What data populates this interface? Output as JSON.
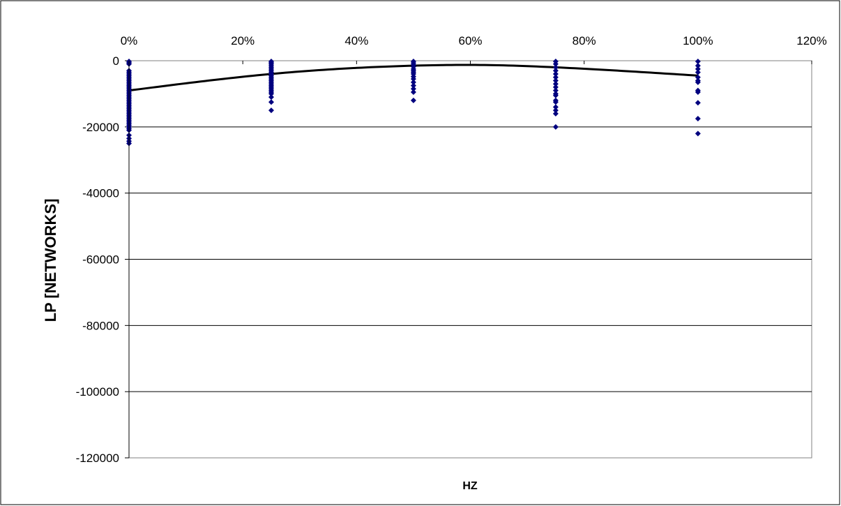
{
  "chart_data": {
    "type": "scatter",
    "title": "",
    "xlabel": "HZ",
    "ylabel": "LP [NETWORKS]",
    "xlim": [
      0,
      1.2
    ],
    "ylim": [
      -120000,
      0
    ],
    "x_ticks": [
      0,
      0.2,
      0.4,
      0.6,
      0.8,
      1.0,
      1.2
    ],
    "x_tick_labels": [
      "0%",
      "20%",
      "40%",
      "60%",
      "80%",
      "100%",
      "120%"
    ],
    "y_ticks": [
      0,
      -20000,
      -40000,
      -60000,
      -80000,
      -100000,
      -120000
    ],
    "y_tick_labels": [
      "0",
      "-20000",
      "-40000",
      "-60000",
      "-80000",
      "-100000",
      "-120000"
    ],
    "x_axis_position": "top",
    "grid": "horizontal",
    "legend": "none",
    "marker_color": "#00007f",
    "trend_color": "#000000",
    "series": [
      {
        "marker": "diamond",
        "points": [
          [
            0,
            -200
          ],
          [
            0,
            -600
          ],
          [
            0,
            -1000
          ],
          [
            0,
            -3000
          ],
          [
            0,
            -3500
          ],
          [
            0,
            -4000
          ],
          [
            0,
            -4500
          ],
          [
            0,
            -5000
          ],
          [
            0,
            -5500
          ],
          [
            0,
            -6000
          ],
          [
            0,
            -6500
          ],
          [
            0,
            -7000
          ],
          [
            0,
            -7500
          ],
          [
            0,
            -8000
          ],
          [
            0,
            -8500
          ],
          [
            0,
            -9000
          ],
          [
            0,
            -9500
          ],
          [
            0,
            -10000
          ],
          [
            0,
            -10500
          ],
          [
            0,
            -11000
          ],
          [
            0,
            -11500
          ],
          [
            0,
            -12000
          ],
          [
            0,
            -12500
          ],
          [
            0,
            -13000
          ],
          [
            0,
            -13500
          ],
          [
            0,
            -14000
          ],
          [
            0,
            -14500
          ],
          [
            0,
            -15000
          ],
          [
            0,
            -15500
          ],
          [
            0,
            -16000
          ],
          [
            0,
            -16500
          ],
          [
            0,
            -17000
          ],
          [
            0,
            -17500
          ],
          [
            0,
            -18000
          ],
          [
            0,
            -18500
          ],
          [
            0,
            -19000
          ],
          [
            0,
            -19500
          ],
          [
            0,
            -20000
          ],
          [
            0,
            -20500
          ],
          [
            0,
            -21000
          ],
          [
            0,
            -22500
          ],
          [
            0,
            -23500
          ],
          [
            0,
            -24300
          ],
          [
            0,
            -25000
          ],
          [
            0.25,
            -200
          ],
          [
            0.25,
            -600
          ],
          [
            0.25,
            -1000
          ],
          [
            0.25,
            -1500
          ],
          [
            0.25,
            -2000
          ],
          [
            0.25,
            -2500
          ],
          [
            0.25,
            -3000
          ],
          [
            0.25,
            -3500
          ],
          [
            0.25,
            -4000
          ],
          [
            0.25,
            -4500
          ],
          [
            0.25,
            -5000
          ],
          [
            0.25,
            -5500
          ],
          [
            0.25,
            -6000
          ],
          [
            0.25,
            -6500
          ],
          [
            0.25,
            -7000
          ],
          [
            0.25,
            -7500
          ],
          [
            0.25,
            -8000
          ],
          [
            0.25,
            -8500
          ],
          [
            0.25,
            -9000
          ],
          [
            0.25,
            -9500
          ],
          [
            0.25,
            -10000
          ],
          [
            0.25,
            -11000
          ],
          [
            0.25,
            -12500
          ],
          [
            0.25,
            -15000
          ],
          [
            0.5,
            -200
          ],
          [
            0.5,
            -700
          ],
          [
            0.5,
            -1200
          ],
          [
            0.5,
            -1800
          ],
          [
            0.5,
            -2500
          ],
          [
            0.5,
            -3000
          ],
          [
            0.5,
            -3500
          ],
          [
            0.5,
            -4000
          ],
          [
            0.5,
            -4800
          ],
          [
            0.5,
            -5500
          ],
          [
            0.5,
            -6500
          ],
          [
            0.5,
            -7500
          ],
          [
            0.5,
            -8500
          ],
          [
            0.5,
            -9500
          ],
          [
            0.5,
            -12000
          ],
          [
            0.75,
            -200
          ],
          [
            0.75,
            -1000
          ],
          [
            0.75,
            -2000
          ],
          [
            0.75,
            -3000
          ],
          [
            0.75,
            -4000
          ],
          [
            0.75,
            -5000
          ],
          [
            0.75,
            -6000
          ],
          [
            0.75,
            -7000
          ],
          [
            0.75,
            -8000
          ],
          [
            0.75,
            -9000
          ],
          [
            0.75,
            -10000
          ],
          [
            0.75,
            -10500
          ],
          [
            0.75,
            -12000
          ],
          [
            0.75,
            -12500
          ],
          [
            0.75,
            -14000
          ],
          [
            0.75,
            -15000
          ],
          [
            0.75,
            -16000
          ],
          [
            0.75,
            -20000
          ],
          [
            1.0,
            -200
          ],
          [
            1.0,
            -1500
          ],
          [
            1.0,
            -2500
          ],
          [
            1.0,
            -3500
          ],
          [
            1.0,
            -5000
          ],
          [
            1.0,
            -6000
          ],
          [
            1.0,
            -6500
          ],
          [
            1.0,
            -9000
          ],
          [
            1.0,
            -9500
          ],
          [
            1.0,
            -12700
          ],
          [
            1.0,
            -17500
          ],
          [
            1.0,
            -22000
          ]
        ]
      }
    ],
    "trendline": {
      "type": "polynomial",
      "points": [
        [
          0,
          -9000
        ],
        [
          0.25,
          -4000
        ],
        [
          0.5,
          -1500
        ],
        [
          0.625,
          -1300
        ],
        [
          0.75,
          -2000
        ],
        [
          1.0,
          -4500
        ]
      ]
    }
  }
}
